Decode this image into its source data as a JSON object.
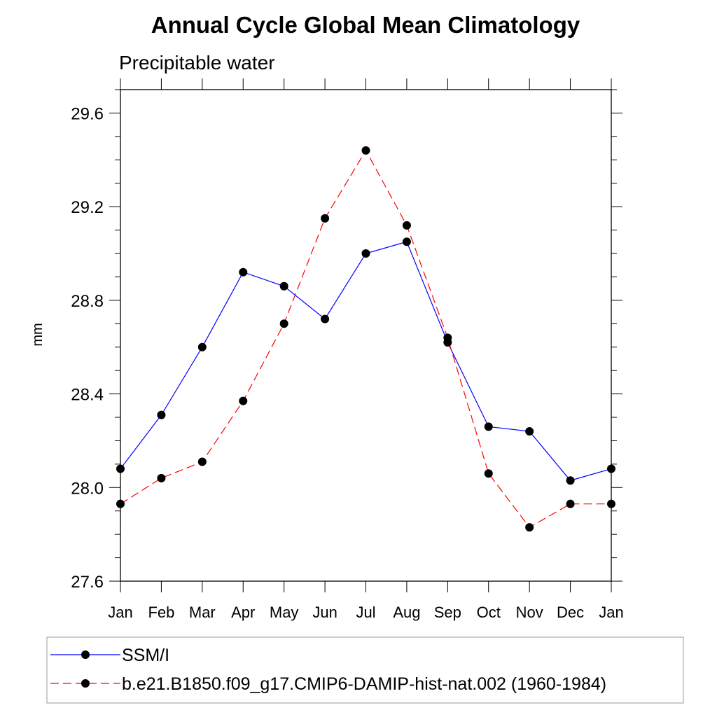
{
  "chart_data": {
    "type": "line",
    "title": "Annual Cycle Global Mean Climatology",
    "subtitle": "Precipitable water",
    "xlabel": "",
    "ylabel": "mm",
    "categories": [
      "Jan",
      "Feb",
      "Mar",
      "Apr",
      "May",
      "Jun",
      "Jul",
      "Aug",
      "Sep",
      "Oct",
      "Nov",
      "Dec",
      "Jan"
    ],
    "ylim": [
      27.6,
      29.7
    ],
    "yticks": [
      "27.6",
      "28.0",
      "28.4",
      "28.8",
      "29.2",
      "29.6"
    ],
    "grid": false,
    "legend_position": "bottom",
    "series": [
      {
        "name": "SSM/I",
        "color": "#0000ff",
        "style": "solid",
        "marker": "filled-circle",
        "values": [
          28.08,
          28.31,
          28.6,
          28.92,
          28.86,
          28.72,
          29.0,
          29.05,
          28.62,
          28.26,
          28.24,
          28.03,
          28.08
        ]
      },
      {
        "name": "b.e21.B1850.f09_g17.CMIP6-DAMIP-hist-nat.002 (1960-1984)",
        "color": "#ff0000",
        "style": "dashed",
        "marker": "filled-circle",
        "values": [
          27.93,
          28.04,
          28.11,
          28.37,
          28.7,
          29.15,
          29.44,
          29.12,
          28.64,
          28.06,
          27.83,
          27.93,
          27.93
        ]
      }
    ]
  }
}
